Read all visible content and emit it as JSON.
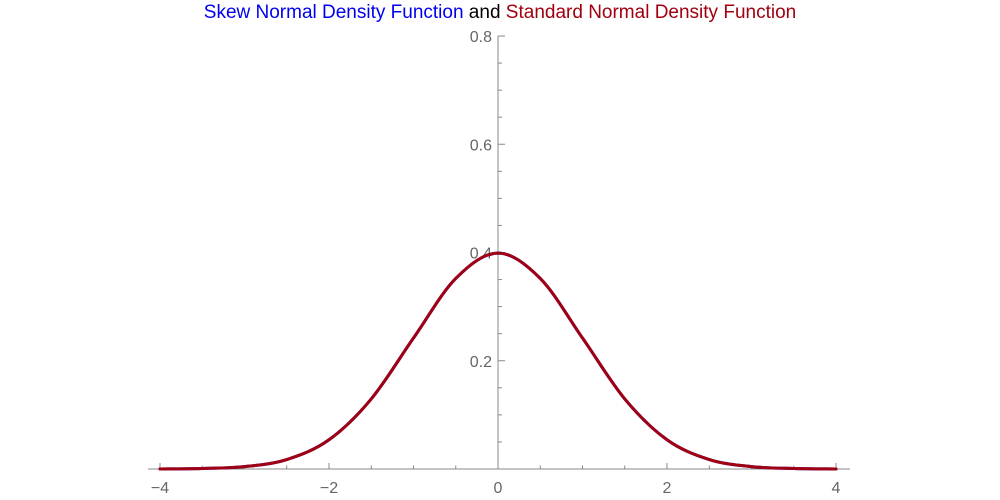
{
  "colors": {
    "skew": "#0000ee",
    "standard": "#a10010",
    "title_join": "#000000",
    "axis": "#888888",
    "tick_label": "#666666"
  },
  "title": {
    "part1": "Skew Normal Density Function",
    "part2": " and ",
    "part3": "Standard Normal Density Function"
  },
  "chart_data": {
    "type": "line",
    "title": "Skew Normal Density Function and Standard Normal Density Function",
    "xlim": [
      -4,
      4
    ],
    "ylim": [
      0,
      0.8
    ],
    "x_ticks": [
      -4,
      -2,
      0,
      2,
      4
    ],
    "x_tick_labels": [
      "−4",
      "−2",
      "0",
      "2",
      "4"
    ],
    "y_ticks": [
      0.2,
      0.4,
      0.6,
      0.8
    ],
    "y_tick_labels": [
      "0.2",
      "0.4",
      "0.6",
      "0.8"
    ],
    "grid": false,
    "series": [
      {
        "name": "Skew Normal Density Function",
        "color": "#0000ee",
        "x": [
          -4,
          -3.5,
          -3,
          -2.5,
          -2,
          -1.5,
          -1,
          -0.5,
          0,
          0.5,
          1,
          1.5,
          2,
          2.5,
          3,
          3.5,
          4
        ],
        "y": [
          0.0001,
          0.0009,
          0.0044,
          0.0175,
          0.054,
          0.1295,
          0.242,
          0.3521,
          0.3989,
          0.3521,
          0.242,
          0.1295,
          0.054,
          0.0175,
          0.0044,
          0.0009,
          0.0001
        ]
      },
      {
        "name": "Standard Normal Density Function",
        "color": "#a10010",
        "x": [
          -4,
          -3.5,
          -3,
          -2.5,
          -2,
          -1.5,
          -1,
          -0.5,
          0,
          0.5,
          1,
          1.5,
          2,
          2.5,
          3,
          3.5,
          4
        ],
        "y": [
          0.0001,
          0.0009,
          0.0044,
          0.0175,
          0.054,
          0.1295,
          0.242,
          0.3521,
          0.3989,
          0.3521,
          0.242,
          0.1295,
          0.054,
          0.0175,
          0.0044,
          0.0009,
          0.0001
        ]
      }
    ]
  }
}
